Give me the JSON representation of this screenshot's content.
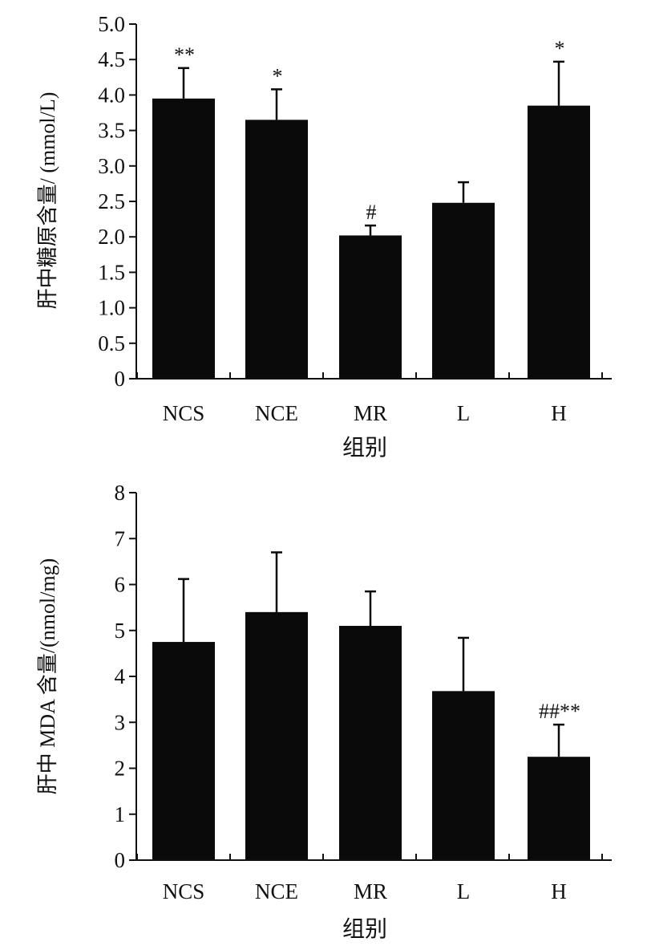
{
  "chart_data": [
    {
      "type": "bar",
      "categories": [
        "NCS",
        "NCE",
        "MR",
        "L",
        "H"
      ],
      "values": [
        3.95,
        3.65,
        2.02,
        2.48,
        3.85
      ],
      "errors": [
        0.43,
        0.43,
        0.14,
        0.29,
        0.62
      ],
      "annotations": [
        "**",
        "*",
        "#",
        "",
        "*"
      ],
      "xlabel": "组别",
      "ylabel": "肝中糖原含量/ (mmol/L)",
      "ylim": [
        0,
        5.0
      ],
      "yticks": [
        "0",
        "0.5",
        "1.0",
        "1.5",
        "2.0",
        "2.5",
        "3.0",
        "3.5",
        "4.0",
        "4.5",
        "5.0"
      ],
      "bar_color": "#0a0a0a",
      "grid": false
    },
    {
      "type": "bar",
      "categories": [
        "NCS",
        "NCE",
        "MR",
        "L",
        "H"
      ],
      "values": [
        4.75,
        5.4,
        5.1,
        3.68,
        2.25
      ],
      "errors": [
        1.37,
        1.3,
        0.75,
        1.16,
        0.7
      ],
      "annotations": [
        "",
        "",
        "",
        "",
        "##**"
      ],
      "xlabel": "组别",
      "ylabel": "肝中 MDA 含量/(nmol/mg)",
      "ylim": [
        0,
        8
      ],
      "yticks": [
        "0",
        "1",
        "2",
        "3",
        "4",
        "5",
        "6",
        "7",
        "8"
      ],
      "bar_color": "#0a0a0a",
      "grid": false
    }
  ]
}
